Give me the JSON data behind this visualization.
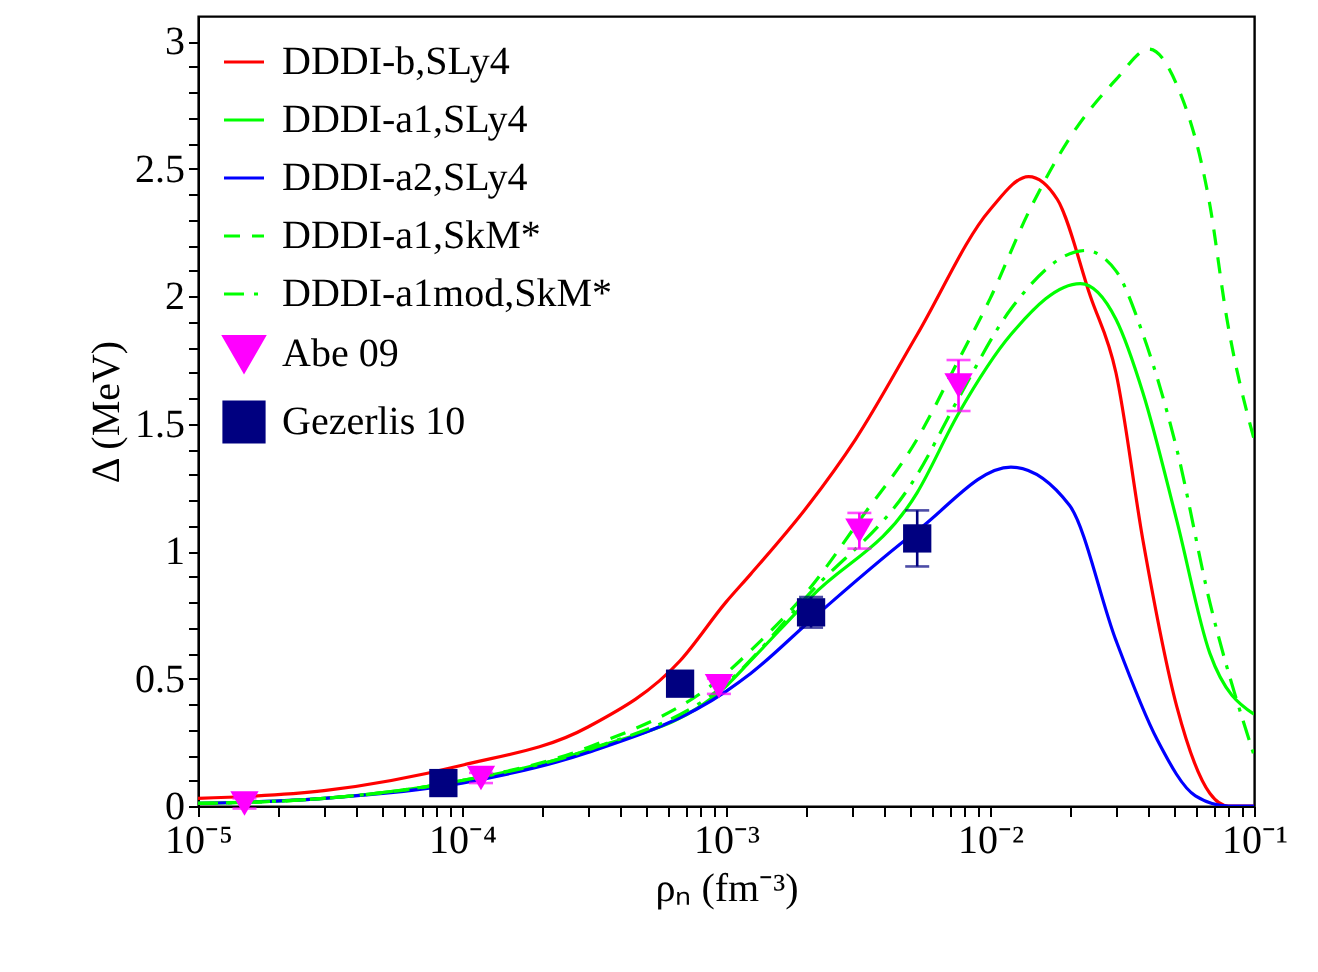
{
  "chart_data": {
    "type": "line",
    "xlabel": "ρₙ (fm⁻³)",
    "ylabel": "Δ (MeV)",
    "log": "x",
    "legend": "top left",
    "xlim": [
      1e-05,
      0.1
    ],
    "ylim": [
      0,
      3.1
    ],
    "xticks": [
      {
        "value": 1e-05,
        "label": "10⁻⁵"
      },
      {
        "value": 2e-05,
        "label": null
      },
      {
        "value": 3e-05,
        "label": null
      },
      {
        "value": 4e-05,
        "label": null
      },
      {
        "value": 5e-05,
        "label": null
      },
      {
        "value": 6e-05,
        "label": null
      },
      {
        "value": 7e-05,
        "label": null
      },
      {
        "value": 8e-05,
        "label": null
      },
      {
        "value": 9e-05,
        "label": null
      },
      {
        "value": 0.0001,
        "label": "10⁻⁴"
      },
      {
        "value": 0.0002,
        "label": null
      },
      {
        "value": 0.0003,
        "label": null
      },
      {
        "value": 0.0004,
        "label": null
      },
      {
        "value": 0.0005,
        "label": null
      },
      {
        "value": 0.0006,
        "label": null
      },
      {
        "value": 0.0007,
        "label": null
      },
      {
        "value": 0.0008,
        "label": null
      },
      {
        "value": 0.0009,
        "label": null
      },
      {
        "value": 0.001,
        "label": "10⁻³"
      },
      {
        "value": 0.002,
        "label": null
      },
      {
        "value": 0.003,
        "label": null
      },
      {
        "value": 0.004,
        "label": null
      },
      {
        "value": 0.005,
        "label": null
      },
      {
        "value": 0.006,
        "label": null
      },
      {
        "value": 0.007,
        "label": null
      },
      {
        "value": 0.008,
        "label": null
      },
      {
        "value": 0.009,
        "label": null
      },
      {
        "value": 0.01,
        "label": "10⁻²"
      },
      {
        "value": 0.02,
        "label": null
      },
      {
        "value": 0.03,
        "label": null
      },
      {
        "value": 0.04,
        "label": null
      },
      {
        "value": 0.05,
        "label": null
      },
      {
        "value": 0.06,
        "label": null
      },
      {
        "value": 0.07,
        "label": null
      },
      {
        "value": 0.08,
        "label": null
      },
      {
        "value": 0.09,
        "label": null
      },
      {
        "value": 0.1,
        "label": "10⁻¹"
      }
    ],
    "yticks": [
      0,
      {
        "value": 0.1,
        "label": null
      },
      {
        "value": 0.2,
        "label": null
      },
      {
        "value": 0.3,
        "label": null
      },
      {
        "value": 0.4,
        "label": null
      },
      0.5,
      {
        "value": 0.6,
        "label": null
      },
      {
        "value": 0.7,
        "label": null
      },
      {
        "value": 0.8,
        "label": null
      },
      {
        "value": 0.9,
        "label": null
      },
      1,
      {
        "value": 1.1,
        "label": null
      },
      {
        "value": 1.2,
        "label": null
      },
      {
        "value": 1.3,
        "label": null
      },
      {
        "value": 1.4,
        "label": null
      },
      1.5,
      {
        "value": 1.6,
        "label": null
      },
      {
        "value": 1.7,
        "label": null
      },
      {
        "value": 1.8,
        "label": null
      },
      {
        "value": 1.9,
        "label": null
      },
      2,
      {
        "value": 2.1,
        "label": null
      },
      {
        "value": 2.2,
        "label": null
      },
      {
        "value": 2.3,
        "label": null
      },
      {
        "value": 2.4,
        "label": null
      },
      2.5,
      {
        "value": 2.6,
        "label": null
      },
      {
        "value": 2.7,
        "label": null
      },
      {
        "value": 2.8,
        "label": null
      },
      {
        "value": 2.9,
        "label": null
      },
      3
    ],
    "series": [
      {
        "name": "DDDI-b,SLy4",
        "color": "#ff0000",
        "line_style": "solid",
        "x": [
          1e-05,
          3e-05,
          0.0001,
          0.0003,
          0.00067,
          0.001,
          0.00124,
          0.00205,
          0.0031,
          0.0053,
          0.01,
          0.014,
          0.018,
          0.024,
          0.03,
          0.038,
          0.051,
          0.068,
          0.08,
          0.1
        ],
        "values": [
          0.03,
          0.06,
          0.16,
          0.31,
          0.57,
          0.8,
          0.91,
          1.18,
          1.44,
          1.85,
          2.34,
          2.47,
          2.38,
          2.0,
          1.7,
          1.04,
          0.39,
          0.05,
          0.0,
          0.0
        ]
      },
      {
        "name": "DDDI-a1,SLy4",
        "color": "#00ff00",
        "line_style": "solid",
        "x": [
          1e-05,
          3e-05,
          0.0001,
          0.0003,
          0.001,
          0.00124,
          0.0021,
          0.0053,
          0.0076,
          0.012,
          0.022,
          0.03,
          0.038,
          0.051,
          0.068,
          0.1
        ],
        "values": [
          0.01,
          0.03,
          0.1,
          0.22,
          0.47,
          0.57,
          0.82,
          1.23,
          1.54,
          1.85,
          2.05,
          1.91,
          1.62,
          1.12,
          0.6,
          0.36
        ]
      },
      {
        "name": "DDDI-a2,SLy4",
        "color": "#0000ff",
        "line_style": "solid",
        "x": [
          1e-05,
          3e-05,
          0.0001,
          0.0003,
          0.001,
          0.00124,
          0.0021,
          0.0053,
          0.012,
          0.02,
          0.03,
          0.043,
          0.06,
          0.08,
          0.1
        ],
        "values": [
          0.01,
          0.03,
          0.09,
          0.21,
          0.45,
          0.52,
          0.73,
          1.08,
          1.33,
          1.18,
          0.65,
          0.26,
          0.04,
          0.0,
          0.0
        ]
      },
      {
        "name": "DDDI-a1,SkM*",
        "color": "#00ff00",
        "line_style": "dashed",
        "x": [
          1e-05,
          3e-05,
          0.0001,
          0.0003,
          0.001,
          0.00124,
          0.0021,
          0.0032,
          0.0053,
          0.0076,
          0.01,
          0.014,
          0.02,
          0.03,
          0.04,
          0.051,
          0.068,
          0.079,
          0.1
        ],
        "values": [
          0.01,
          0.03,
          0.1,
          0.23,
          0.52,
          0.61,
          0.86,
          1.12,
          1.44,
          1.75,
          1.99,
          2.33,
          2.62,
          2.85,
          2.97,
          2.83,
          2.36,
          1.91,
          1.44
        ]
      },
      {
        "name": "DDDI-a1mod,SkM*",
        "color": "#00ff00",
        "line_style": "dashdot",
        "x": [
          1e-05,
          3e-05,
          0.0001,
          0.0003,
          0.001,
          0.0021,
          0.0053,
          0.0076,
          0.012,
          0.023,
          0.03,
          0.038,
          0.051,
          0.068,
          0.1
        ],
        "values": [
          0.01,
          0.03,
          0.1,
          0.22,
          0.48,
          0.84,
          1.3,
          1.6,
          1.95,
          2.18,
          2.1,
          1.85,
          1.4,
          0.8,
          0.2
        ]
      },
      {
        "name": "Abe 09",
        "type": "scatter",
        "marker": "triangle",
        "color": "#ff00ff",
        "x": [
          1.5e-05,
          0.000118,
          0.00094,
          0.0032,
          0.0076
        ],
        "values": [
          0.01,
          0.11,
          0.47,
          1.08,
          1.65
        ],
        "errors": [
          0.02,
          0.02,
          0.03,
          0.07,
          0.1
        ]
      },
      {
        "name": "Gezerlis 10",
        "type": "scatter",
        "marker": "square",
        "color": "#000080",
        "x": [
          8.5e-05,
          0.00067,
          0.0021,
          0.0053
        ],
        "values": [
          0.09,
          0.48,
          0.76,
          1.05
        ],
        "errors": [
          0.02,
          0.02,
          0.06,
          0.11
        ]
      }
    ]
  }
}
